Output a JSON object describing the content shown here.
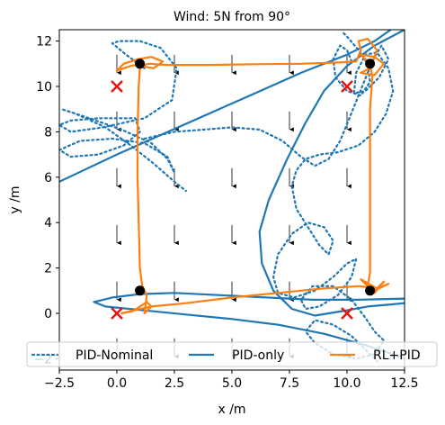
{
  "chart_data": {
    "type": "line",
    "title": "Wind: 5N from 90°",
    "xlabel": "x /m",
    "ylabel": "y /m",
    "xlim": [
      -2.5,
      12.5
    ],
    "ylim": [
      -2.5,
      12.5
    ],
    "xticks": [
      -2.5,
      0.0,
      2.5,
      5.0,
      7.5,
      10.0,
      12.5
    ],
    "xtick_labels": [
      "−2.5",
      "0.0",
      "2.5",
      "5.0",
      "7.5",
      "10.0",
      "12.5"
    ],
    "yticks": [
      -2,
      0,
      2,
      4,
      6,
      8,
      10,
      12
    ],
    "ytick_labels": [
      "−2",
      "0",
      "2",
      "4",
      "6",
      "8",
      "10",
      "12"
    ],
    "grid": false,
    "legend_placement": "bottom",
    "wind_arrows": {
      "direction": "down",
      "x": [
        0,
        2.5,
        5,
        7.5,
        10,
        12.5
      ],
      "y": [
        -1.5,
        1,
        3.5,
        6,
        8.5,
        11
      ]
    },
    "waypoints_x": [
      [
        0,
        10
      ],
      [
        10,
        10
      ],
      [
        10,
        0
      ],
      [
        0,
        0
      ]
    ],
    "waypoints_dot": [
      [
        1,
        11
      ],
      [
        11,
        11
      ],
      [
        11,
        1
      ],
      [
        1,
        1
      ]
    ],
    "series": [
      {
        "name": "PID-Nominal",
        "color": "#1f77b4",
        "style": "dotted",
        "points": [
          [
            1.2,
            10.8
          ],
          [
            0.4,
            11.4
          ],
          [
            -0.2,
            11.9
          ],
          [
            0.1,
            12.0
          ],
          [
            1.0,
            12.0
          ],
          [
            1.9,
            11.7
          ],
          [
            2.6,
            10.8
          ],
          [
            2.4,
            9.4
          ],
          [
            1.2,
            8.6
          ],
          [
            -0.6,
            8.2
          ],
          [
            -2.0,
            8.0
          ],
          [
            -2.5,
            8.3
          ],
          [
            -2.0,
            8.5
          ],
          [
            -0.8,
            8.6
          ],
          [
            0.8,
            8.6
          ],
          [
            1.0,
            8.0
          ],
          [
            0.3,
            7.4
          ],
          [
            -0.8,
            7.0
          ],
          [
            -2.0,
            6.9
          ],
          [
            -2.5,
            7.2
          ],
          [
            -1.6,
            7.6
          ],
          [
            -0.2,
            7.7
          ],
          [
            1.2,
            7.5
          ],
          [
            2.2,
            6.9
          ],
          [
            2.5,
            6.2
          ],
          [
            2.2,
            6.8
          ],
          [
            1.5,
            7.5
          ],
          [
            0.2,
            8.1
          ],
          [
            -1.2,
            8.6
          ],
          [
            -2.4,
            9.0
          ],
          [
            -1.8,
            8.8
          ],
          [
            -0.5,
            8.2
          ],
          [
            0.6,
            7.4
          ],
          [
            1.6,
            6.6
          ],
          [
            2.5,
            5.8
          ],
          [
            3.0,
            5.4
          ]
        ]
      },
      {
        "name": "PID-Nominal",
        "color": "#1f77b4",
        "style": "dotted",
        "points": [
          [
            1.2,
            7.7
          ],
          [
            2.5,
            8.0
          ],
          [
            3.8,
            8.1
          ],
          [
            5.0,
            8.2
          ],
          [
            6.2,
            8.1
          ],
          [
            7.2,
            7.6
          ],
          [
            8.0,
            6.9
          ],
          [
            8.6,
            6.5
          ],
          [
            9.2,
            6.8
          ],
          [
            9.7,
            7.6
          ],
          [
            10.1,
            8.6
          ],
          [
            10.5,
            9.6
          ],
          [
            10.9,
            10.6
          ],
          [
            11.2,
            11.3
          ],
          [
            11.5,
            11.8
          ],
          [
            11.8,
            11.2
          ],
          [
            11.4,
            10.4
          ],
          [
            10.8,
            9.8
          ],
          [
            10.3,
            9.7
          ],
          [
            10.4,
            10.6
          ],
          [
            10.8,
            11.4
          ],
          [
            11.3,
            11.5
          ],
          [
            11.8,
            10.8
          ],
          [
            12.0,
            9.8
          ],
          [
            11.7,
            8.8
          ],
          [
            11.2,
            8.0
          ],
          [
            10.5,
            7.4
          ],
          [
            9.6,
            7.1
          ],
          [
            8.8,
            7.0
          ],
          [
            8.2,
            6.8
          ],
          [
            7.8,
            6.3
          ],
          [
            7.6,
            5.6
          ],
          [
            7.8,
            4.6
          ],
          [
            8.3,
            3.8
          ],
          [
            8.8,
            3.0
          ],
          [
            9.2,
            2.6
          ],
          [
            9.4,
            3.2
          ],
          [
            9.0,
            3.8
          ],
          [
            8.3,
            4.0
          ],
          [
            7.6,
            3.5
          ],
          [
            7.0,
            2.6
          ],
          [
            6.8,
            1.6
          ],
          [
            7.0,
            0.9
          ],
          [
            7.7,
            0.7
          ],
          [
            8.6,
            1.0
          ],
          [
            9.4,
            1.6
          ],
          [
            10.0,
            2.2
          ],
          [
            10.4,
            2.4
          ],
          [
            10.2,
            1.6
          ],
          [
            9.6,
            0.8
          ],
          [
            8.8,
            0.3
          ],
          [
            8.2,
            0.2
          ],
          [
            8.0,
            0.6
          ],
          [
            8.5,
            1.2
          ],
          [
            9.4,
            1.2
          ],
          [
            10.2,
            0.6
          ],
          [
            10.8,
            -0.2
          ],
          [
            11.2,
            -0.8
          ],
          [
            11.6,
            -1.2
          ],
          [
            11.2,
            -1.8
          ],
          [
            10.4,
            -2.0
          ],
          [
            9.4,
            -1.8
          ],
          [
            8.6,
            -1.3
          ],
          [
            8.2,
            -0.8
          ],
          [
            8.6,
            -0.3
          ],
          [
            9.4,
            -0.5
          ],
          [
            10.2,
            -1.0
          ],
          [
            10.8,
            -1.6
          ],
          [
            11.4,
            -2.2
          ]
        ]
      },
      {
        "name": "PID-Nominal",
        "color": "#1f77b4",
        "style": "dotted",
        "points": [
          [
            10.2,
            11.1
          ],
          [
            10.0,
            11.6
          ],
          [
            9.7,
            11.8
          ],
          [
            9.4,
            11.2
          ],
          [
            9.5,
            10.4
          ],
          [
            10.0,
            9.8
          ],
          [
            10.6,
            9.6
          ],
          [
            11.0,
            10.2
          ],
          [
            10.9,
            11.0
          ],
          [
            10.5,
            11.6
          ],
          [
            10.0,
            12.2
          ],
          [
            9.8,
            12.4
          ]
        ]
      },
      {
        "name": "PID-only",
        "color": "#1f77b4",
        "style": "solid",
        "points": [
          [
            -2.5,
            5.8
          ],
          [
            0.0,
            7.0
          ],
          [
            2.0,
            7.9
          ],
          [
            4.0,
            8.8
          ],
          [
            6.0,
            9.7
          ],
          [
            8.0,
            10.6
          ],
          [
            10.0,
            11.4
          ],
          [
            11.2,
            12.0
          ],
          [
            11.9,
            12.5
          ]
        ]
      },
      {
        "name": "PID-only",
        "color": "#1f77b4",
        "style": "solid",
        "points": [
          [
            12.5,
            12.5
          ],
          [
            11.2,
            11.8
          ],
          [
            10.0,
            10.9
          ],
          [
            9.0,
            9.8
          ],
          [
            8.2,
            8.4
          ],
          [
            7.4,
            6.8
          ],
          [
            6.6,
            5.0
          ],
          [
            6.2,
            3.6
          ],
          [
            6.3,
            2.2
          ],
          [
            6.8,
            1.0
          ],
          [
            7.6,
            0.2
          ],
          [
            8.6,
            -0.1
          ],
          [
            9.8,
            0.1
          ],
          [
            10.9,
            0.3
          ],
          [
            12.0,
            0.4
          ],
          [
            12.5,
            0.45
          ]
        ]
      },
      {
        "name": "PID-only",
        "color": "#1f77b4",
        "style": "solid",
        "points": [
          [
            12.5,
            0.65
          ],
          [
            10.5,
            0.6
          ],
          [
            8.5,
            0.6
          ],
          [
            6.5,
            0.7
          ],
          [
            4.5,
            0.8
          ],
          [
            2.5,
            0.9
          ],
          [
            1.0,
            0.85
          ],
          [
            -0.2,
            0.7
          ],
          [
            -1.0,
            0.5
          ],
          [
            -0.5,
            0.3
          ],
          [
            1.0,
            0.15
          ],
          [
            3.0,
            -0.05
          ],
          [
            5.0,
            -0.25
          ],
          [
            7.0,
            -0.5
          ],
          [
            9.0,
            -0.9
          ],
          [
            10.8,
            -1.4
          ],
          [
            12.0,
            -1.8
          ],
          [
            12.5,
            -2.0
          ]
        ]
      },
      {
        "name": "RL+PID",
        "color": "#ff7f0e",
        "style": "solid",
        "points": [
          [
            1.1,
            11.0
          ],
          [
            0.6,
            10.9
          ],
          [
            0.0,
            10.7
          ],
          [
            0.3,
            11.0
          ],
          [
            0.9,
            11.2
          ],
          [
            1.5,
            11.3
          ],
          [
            2.0,
            11.1
          ],
          [
            1.6,
            10.8
          ],
          [
            1.0,
            10.9
          ],
          [
            1.4,
            11.0
          ],
          [
            2.2,
            10.95
          ],
          [
            4.0,
            10.95
          ],
          [
            6.0,
            10.98
          ],
          [
            8.0,
            11.0
          ],
          [
            9.5,
            11.05
          ],
          [
            10.4,
            11.1
          ],
          [
            10.6,
            11.6
          ],
          [
            10.5,
            12.0
          ],
          [
            10.9,
            12.1
          ],
          [
            11.3,
            11.6
          ],
          [
            11.0,
            10.8
          ],
          [
            10.6,
            10.6
          ],
          [
            11.2,
            10.5
          ],
          [
            11.6,
            11.0
          ],
          [
            11.2,
            11.3
          ],
          [
            10.6,
            11.4
          ],
          [
            11.0,
            11.0
          ],
          [
            11.1,
            10.4
          ],
          [
            11.0,
            9.0
          ],
          [
            11.0,
            7.0
          ],
          [
            11.0,
            5.0
          ],
          [
            11.0,
            3.0
          ],
          [
            11.0,
            1.8
          ],
          [
            10.9,
            1.2
          ],
          [
            10.6,
            1.5
          ],
          [
            11.3,
            1.1
          ],
          [
            11.6,
            1.4
          ],
          [
            11.2,
            0.9
          ],
          [
            10.9,
            0.9
          ],
          [
            11.8,
            1.3
          ],
          [
            11.4,
            1.1
          ],
          [
            10.5,
            1.2
          ],
          [
            9.0,
            1.1
          ],
          [
            7.0,
            0.9
          ],
          [
            5.0,
            0.7
          ],
          [
            3.0,
            0.45
          ],
          [
            1.5,
            0.3
          ],
          [
            0.6,
            0.1
          ],
          [
            0.2,
            0.0
          ],
          [
            0.7,
            0.1
          ],
          [
            1.3,
            0.5
          ],
          [
            1.5,
            0.3
          ],
          [
            1.2,
            0.0
          ],
          [
            1.3,
            0.8
          ],
          [
            1.1,
            1.2
          ],
          [
            1.0,
            2.0
          ],
          [
            0.95,
            4.0
          ],
          [
            0.9,
            6.0
          ],
          [
            0.9,
            8.0
          ],
          [
            0.95,
            10.0
          ],
          [
            1.0,
            10.8
          ]
        ]
      }
    ],
    "legend": [
      {
        "label": "PID-Nominal",
        "style": "dotted",
        "color": "#1f77b4"
      },
      {
        "label": "PID-only",
        "style": "solid",
        "color": "#1f77b4"
      },
      {
        "label": "RL+PID",
        "style": "solid",
        "color": "#ff7f0e"
      }
    ]
  }
}
